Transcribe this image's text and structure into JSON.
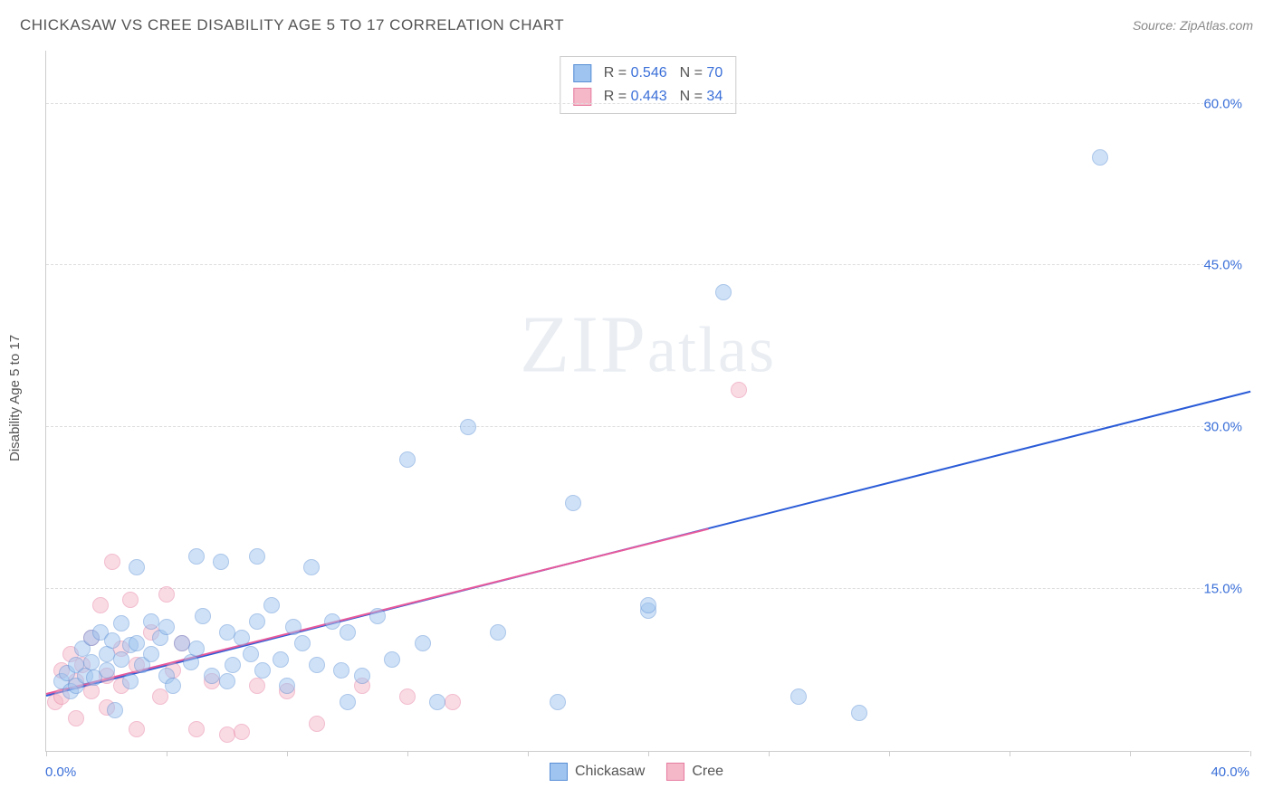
{
  "title": "CHICKASAW VS CREE DISABILITY AGE 5 TO 17 CORRELATION CHART",
  "source": "Source: ZipAtlas.com",
  "y_axis_label": "Disability Age 5 to 17",
  "watermark": {
    "big": "ZIP",
    "rest": "atlas"
  },
  "chart": {
    "type": "scatter",
    "xlim": [
      0,
      40
    ],
    "ylim": [
      0,
      65
    ],
    "x_origin_label": "0.0%",
    "x_max_label": "40.0%",
    "y_ticks": [
      15,
      30,
      45,
      60
    ],
    "y_tick_labels": [
      "15.0%",
      "30.0%",
      "45.0%",
      "60.0%"
    ],
    "x_tick_positions": [
      0,
      4,
      8,
      12,
      16,
      20,
      24,
      28,
      32,
      36,
      40
    ],
    "background_color": "#ffffff",
    "grid_color": "#dddddd",
    "axis_color": "#cccccc",
    "label_color": "#3a6fd8",
    "marker_radius": 9,
    "marker_opacity": 0.5,
    "line_width": 2
  },
  "series": {
    "chickasaw": {
      "label": "Chickasaw",
      "fill": "#9ec4ef",
      "stroke": "#5a8fd6",
      "r_label": "R =",
      "r_value": "0.546",
      "n_label": "N =",
      "n_value": "70",
      "trend": {
        "x1": 0,
        "y1": 5.0,
        "x2": 40,
        "y2": 33.2,
        "color": "#2a5bd7"
      },
      "points": [
        [
          0.5,
          6.5
        ],
        [
          0.7,
          7.2
        ],
        [
          0.8,
          5.5
        ],
        [
          1.0,
          8.0
        ],
        [
          1.0,
          6.0
        ],
        [
          1.2,
          9.5
        ],
        [
          1.3,
          7.0
        ],
        [
          1.5,
          10.5
        ],
        [
          1.5,
          8.2
        ],
        [
          1.6,
          6.8
        ],
        [
          1.8,
          11.0
        ],
        [
          2.0,
          7.5
        ],
        [
          2.0,
          9.0
        ],
        [
          2.2,
          10.2
        ],
        [
          2.3,
          3.8
        ],
        [
          2.5,
          8.5
        ],
        [
          2.5,
          11.8
        ],
        [
          2.8,
          6.5
        ],
        [
          2.8,
          9.8
        ],
        [
          3.0,
          17.0
        ],
        [
          3.0,
          10.0
        ],
        [
          3.2,
          8.0
        ],
        [
          3.5,
          12.0
        ],
        [
          3.5,
          9.0
        ],
        [
          3.8,
          10.5
        ],
        [
          4.0,
          7.0
        ],
        [
          4.0,
          11.5
        ],
        [
          4.2,
          6.0
        ],
        [
          4.5,
          10.0
        ],
        [
          4.8,
          8.2
        ],
        [
          5.0,
          18.0
        ],
        [
          5.0,
          9.5
        ],
        [
          5.2,
          12.5
        ],
        [
          5.5,
          7.0
        ],
        [
          5.8,
          17.5
        ],
        [
          6.0,
          6.5
        ],
        [
          6.0,
          11.0
        ],
        [
          6.2,
          8.0
        ],
        [
          6.5,
          10.5
        ],
        [
          6.8,
          9.0
        ],
        [
          7.0,
          18.0
        ],
        [
          7.0,
          12.0
        ],
        [
          7.2,
          7.5
        ],
        [
          7.5,
          13.5
        ],
        [
          7.8,
          8.5
        ],
        [
          8.0,
          6.0
        ],
        [
          8.2,
          11.5
        ],
        [
          8.5,
          10.0
        ],
        [
          8.8,
          17.0
        ],
        [
          9.0,
          8.0
        ],
        [
          9.5,
          12.0
        ],
        [
          9.8,
          7.5
        ],
        [
          10.0,
          4.5
        ],
        [
          10.0,
          11.0
        ],
        [
          10.5,
          7.0
        ],
        [
          11.0,
          12.5
        ],
        [
          11.5,
          8.5
        ],
        [
          12.0,
          27.0
        ],
        [
          12.5,
          10.0
        ],
        [
          13.0,
          4.5
        ],
        [
          14.0,
          30.0
        ],
        [
          15.0,
          11.0
        ],
        [
          17.0,
          4.5
        ],
        [
          17.5,
          23.0
        ],
        [
          20.0,
          13.0
        ],
        [
          22.5,
          42.5
        ],
        [
          25.0,
          5.0
        ],
        [
          27.0,
          3.5
        ],
        [
          35.0,
          55.0
        ],
        [
          20.0,
          13.5
        ]
      ]
    },
    "cree": {
      "label": "Cree",
      "fill": "#f4b8c9",
      "stroke": "#e77da0",
      "r_label": "R =",
      "r_value": "0.443",
      "n_label": "N =",
      "n_value": "34",
      "trend": {
        "x1": 0,
        "y1": 5.2,
        "x2": 22,
        "y2": 20.5,
        "color": "#e85a9b"
      },
      "points": [
        [
          0.3,
          4.5
        ],
        [
          0.5,
          7.5
        ],
        [
          0.5,
          5.0
        ],
        [
          0.8,
          9.0
        ],
        [
          1.0,
          6.5
        ],
        [
          1.0,
          3.0
        ],
        [
          1.2,
          8.0
        ],
        [
          1.5,
          10.5
        ],
        [
          1.5,
          5.5
        ],
        [
          1.8,
          13.5
        ],
        [
          2.0,
          7.0
        ],
        [
          2.0,
          4.0
        ],
        [
          2.2,
          17.5
        ],
        [
          2.5,
          9.5
        ],
        [
          2.5,
          6.0
        ],
        [
          2.8,
          14.0
        ],
        [
          3.0,
          8.0
        ],
        [
          3.0,
          2.0
        ],
        [
          3.5,
          11.0
        ],
        [
          3.8,
          5.0
        ],
        [
          4.0,
          14.5
        ],
        [
          4.2,
          7.5
        ],
        [
          4.5,
          10.0
        ],
        [
          5.0,
          2.0
        ],
        [
          5.5,
          6.5
        ],
        [
          6.0,
          1.5
        ],
        [
          6.5,
          1.8
        ],
        [
          7.0,
          6.0
        ],
        [
          8.0,
          5.5
        ],
        [
          9.0,
          2.5
        ],
        [
          10.5,
          6.0
        ],
        [
          12.0,
          5.0
        ],
        [
          13.5,
          4.5
        ],
        [
          23.0,
          33.5
        ]
      ]
    }
  }
}
